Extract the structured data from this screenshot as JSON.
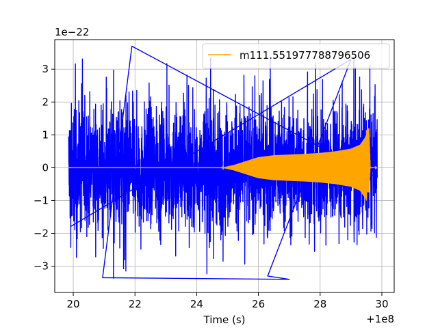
{
  "chart_data": {
    "type": "line",
    "title": "",
    "xlabel": "Time (s)",
    "ylabel": "",
    "x_offset_label": "+1e8",
    "y_scale_label": "1e−22",
    "xlim": [
      19.4,
      30.4
    ],
    "ylim": [
      -3.8,
      3.9
    ],
    "x_ticks": [
      20,
      22,
      24,
      26,
      28,
      30
    ],
    "y_ticks": [
      -3,
      -2,
      -1,
      0,
      1,
      2,
      3
    ],
    "x_tick_labels": [
      "20",
      "22",
      "24",
      "26",
      "28",
      "30"
    ],
    "y_tick_labels": [
      "−3",
      "−2",
      "−1",
      "0",
      "1",
      "2",
      "3"
    ],
    "grid": true,
    "legend_position": "top-right",
    "series": [
      {
        "role": "noise",
        "color": "#0000ff",
        "x_range": [
          19.85,
          29.85
        ],
        "typical_amplitude": 1.5,
        "max": 3.7,
        "min": -3.4
      },
      {
        "role": "template",
        "name": "m111.551977788796506",
        "color": "#ffa500",
        "x_range": [
          19.85,
          29.85
        ],
        "envelope": [
          [
            19.85,
            0.0
          ],
          [
            24.8,
            0.0
          ],
          [
            25.2,
            0.08
          ],
          [
            25.6,
            0.2
          ],
          [
            26.0,
            0.32
          ],
          [
            26.5,
            0.38
          ],
          [
            27.0,
            0.4
          ],
          [
            27.5,
            0.42
          ],
          [
            28.0,
            0.45
          ],
          [
            28.5,
            0.5
          ],
          [
            29.0,
            0.58
          ],
          [
            29.3,
            0.7
          ],
          [
            29.45,
            0.9
          ],
          [
            29.55,
            1.1
          ],
          [
            29.58,
            1.2
          ],
          [
            29.62,
            0.02
          ],
          [
            29.85,
            0.0
          ]
        ],
        "peak_max": 1.2,
        "peak_min": -0.75
      }
    ]
  }
}
